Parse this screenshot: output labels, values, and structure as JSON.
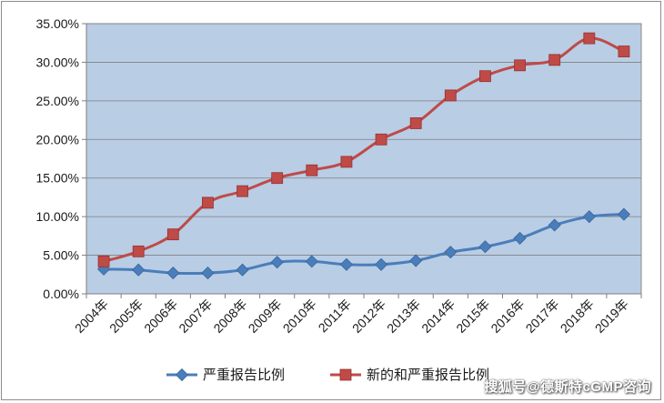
{
  "chart_data": {
    "type": "line",
    "categories": [
      "2004年",
      "2005年",
      "2006年",
      "2007年",
      "2008年",
      "2009年",
      "2010年",
      "2011年",
      "2012年",
      "2013年",
      "2014年",
      "2015年",
      "2016年",
      "2017年",
      "2018年",
      "2019年"
    ],
    "series": [
      {
        "name": "严重报告比例",
        "color": "#4a7ebb",
        "marker": "diamond",
        "values": [
          3.2,
          3.1,
          2.7,
          2.7,
          3.1,
          4.1,
          4.2,
          3.8,
          3.8,
          4.3,
          5.4,
          6.1,
          7.2,
          8.9,
          10.0,
          10.3
        ]
      },
      {
        "name": "新的和严重报告比例",
        "color": "#be4b48",
        "marker": "square",
        "values": [
          4.2,
          5.5,
          7.7,
          11.8,
          13.3,
          15.0,
          16.0,
          17.1,
          20.0,
          22.1,
          25.7,
          28.2,
          29.6,
          30.3,
          33.1,
          31.4
        ]
      }
    ],
    "yticks": [
      "0.00%",
      "5.00%",
      "10.00%",
      "15.00%",
      "20.00%",
      "25.00%",
      "30.00%",
      "35.00%"
    ],
    "ylim": [
      0,
      35
    ],
    "grid": true,
    "plot_background": "#b9cde5",
    "legend_position": "bottom"
  },
  "watermark": "搜狐号@德斯特cGMP咨询"
}
